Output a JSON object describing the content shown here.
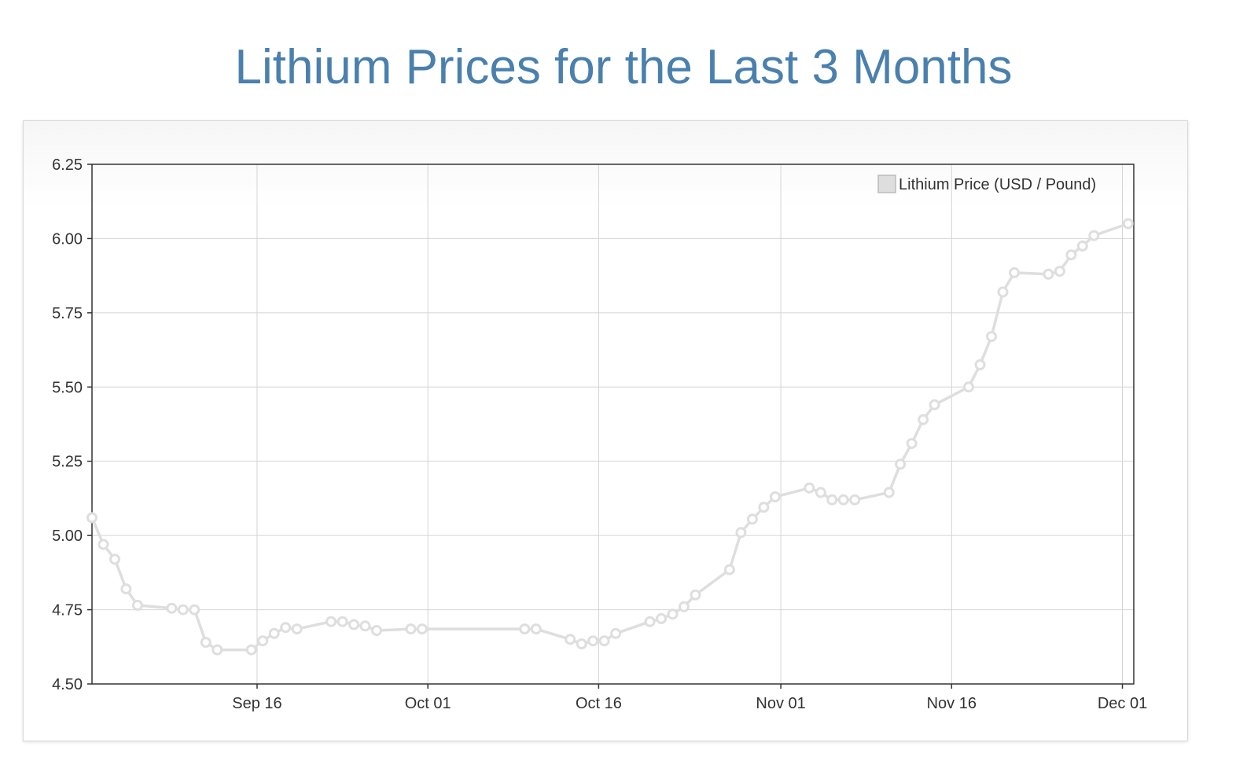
{
  "page_title": "Lithium Prices for the Last 3 Months",
  "chart_data": {
    "type": "line",
    "title": "Lithium Prices for the Last 3 Months",
    "xlabel": "",
    "ylabel": "",
    "ylim": [
      4.5,
      6.25
    ],
    "yticks": [
      "6.25",
      "6.00",
      "5.75",
      "5.50",
      "5.25",
      "5.00",
      "4.75",
      "4.50"
    ],
    "xticks": [
      {
        "label": "Sep 16",
        "day": 14.5
      },
      {
        "label": "Oct 01",
        "day": 29.5
      },
      {
        "label": "Oct 16",
        "day": 44.5
      },
      {
        "label": "Nov 01",
        "day": 60.5
      },
      {
        "label": "Nov 16",
        "day": 75.5
      },
      {
        "label": "Dec 01",
        "day": 90.5
      }
    ],
    "xlim": [
      0,
      91.5
    ],
    "series": [
      {
        "name": "Lithium Price (USD / Pound)",
        "color": "#dedede",
        "points": [
          [
            0,
            5.06
          ],
          [
            1,
            4.97
          ],
          [
            2,
            4.92
          ],
          [
            3,
            4.82
          ],
          [
            4,
            4.765
          ],
          [
            7,
            4.755
          ],
          [
            8,
            4.75
          ],
          [
            9,
            4.75
          ],
          [
            10,
            4.64
          ],
          [
            11,
            4.615
          ],
          [
            14,
            4.615
          ],
          [
            15,
            4.645
          ],
          [
            16,
            4.67
          ],
          [
            17,
            4.69
          ],
          [
            18,
            4.685
          ],
          [
            21,
            4.71
          ],
          [
            22,
            4.71
          ],
          [
            23,
            4.7
          ],
          [
            24,
            4.695
          ],
          [
            25,
            4.68
          ],
          [
            28,
            4.685
          ],
          [
            29,
            4.685
          ],
          [
            38,
            4.685
          ],
          [
            39,
            4.685
          ],
          [
            42,
            4.65
          ],
          [
            43,
            4.635
          ],
          [
            44,
            4.645
          ],
          [
            45,
            4.645
          ],
          [
            46,
            4.67
          ],
          [
            49,
            4.71
          ],
          [
            50,
            4.72
          ],
          [
            51,
            4.735
          ],
          [
            52,
            4.76
          ],
          [
            53,
            4.8
          ],
          [
            56,
            4.885
          ],
          [
            57,
            5.01
          ],
          [
            58,
            5.055
          ],
          [
            59,
            5.095
          ],
          [
            60,
            5.13
          ],
          [
            63,
            5.16
          ],
          [
            64,
            5.145
          ],
          [
            65,
            5.12
          ],
          [
            66,
            5.12
          ],
          [
            67,
            5.12
          ],
          [
            70,
            5.145
          ],
          [
            71,
            5.24
          ],
          [
            72,
            5.31
          ],
          [
            73,
            5.39
          ],
          [
            74,
            5.44
          ],
          [
            77,
            5.5
          ],
          [
            78,
            5.575
          ],
          [
            79,
            5.67
          ],
          [
            80,
            5.82
          ],
          [
            81,
            5.885
          ],
          [
            84,
            5.88
          ],
          [
            85,
            5.89
          ],
          [
            86,
            5.945
          ],
          [
            87,
            5.975
          ],
          [
            88,
            6.01
          ],
          [
            91,
            6.05
          ]
        ]
      }
    ],
    "legend": {
      "position": "top-right"
    },
    "grid": true
  }
}
